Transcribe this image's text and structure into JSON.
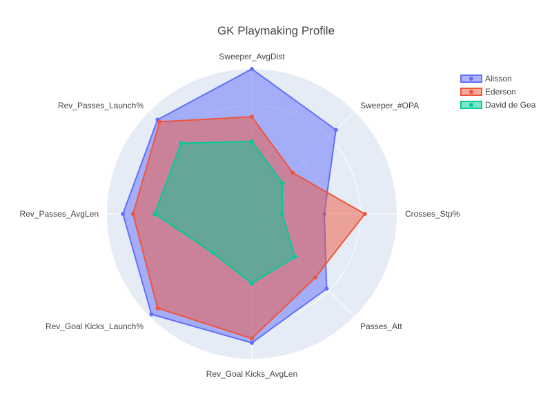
{
  "chart_data": {
    "type": "radar",
    "title": "GK Playmaking Profile",
    "axes": [
      "Sweeper_AvgDist",
      "Sweeper_#OPA",
      "Crosses_Stp%",
      "Passes_Att",
      "Rev_Goal Kicks_AvgLen",
      "Rev_Goal Kicks_Launch%",
      "Rev_Passes_AvgLen",
      "Rev_Passes_Launch%"
    ],
    "range": [
      0,
      1
    ],
    "series": [
      {
        "name": "Alisson",
        "color": "#636efa",
        "values": [
          1.0,
          0.82,
          0.5,
          0.73,
          0.89,
          0.98,
          0.89,
          0.92
        ]
      },
      {
        "name": "Ederson",
        "color": "#ef553b",
        "values": [
          0.67,
          0.4,
          0.78,
          0.62,
          0.86,
          0.92,
          0.82,
          0.9
        ]
      },
      {
        "name": "David de Gea",
        "color": "#00cc96",
        "values": [
          0.5,
          0.3,
          0.21,
          0.42,
          0.48,
          0.38,
          0.67,
          0.69
        ]
      }
    ],
    "legend_position": "top-right",
    "grid": true
  }
}
